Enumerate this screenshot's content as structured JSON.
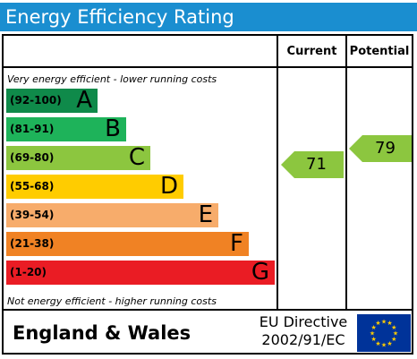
{
  "title": "Energy Efficiency Rating",
  "columns": {
    "current": "Current",
    "potential": "Potential"
  },
  "notes": {
    "top": "Very energy efficient - lower running costs",
    "bottom": "Not energy efficient - higher running costs"
  },
  "footer": {
    "region": "England & Wales",
    "directive_line1": "EU Directive",
    "directive_line2": "2002/91/EC"
  },
  "chart_data": {
    "type": "bar",
    "categories": [
      "A",
      "B",
      "C",
      "D",
      "E",
      "F",
      "G"
    ],
    "ranges": [
      "(92-100)",
      "(81-91)",
      "(69-80)",
      "(55-68)",
      "(39-54)",
      "(21-38)",
      "(1-20)"
    ],
    "colors": [
      "#0f8a4a",
      "#1eb35a",
      "#8cc63f",
      "#ffcc00",
      "#f7ac6b",
      "#f08224",
      "#ea1c24"
    ],
    "current": {
      "value": "71",
      "rating": "C",
      "color": "#8cc63f"
    },
    "potential": {
      "value": "79",
      "rating": "C",
      "color": "#8cc63f"
    }
  },
  "flag_colors": {
    "background": "#003399",
    "stars": "#ffcc00"
  }
}
